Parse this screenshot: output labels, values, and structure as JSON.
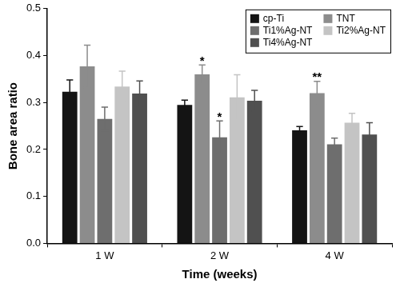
{
  "chart_data": {
    "type": "bar",
    "x_label": "Time (weeks)",
    "y_label": "Bone area ratio",
    "categories": [
      "1 W",
      "2 W",
      "4 W"
    ],
    "series": [
      {
        "name": "cp-Ti",
        "color": "#141414",
        "values": [
          0.323,
          0.295,
          0.241
        ],
        "errors": [
          0.025,
          0.01,
          0.008
        ]
      },
      {
        "name": "TNT",
        "color": "#8c8c8c",
        "values": [
          0.377,
          0.36,
          0.32
        ],
        "errors": [
          0.045,
          0.02,
          0.025
        ]
      },
      {
        "name": "Ti1%Ag-NT",
        "color": "#6e6e6e",
        "values": [
          0.265,
          0.226,
          0.211
        ],
        "errors": [
          0.025,
          0.035,
          0.013
        ]
      },
      {
        "name": "Ti2%Ag-NT",
        "color": "#c4c4c4",
        "values": [
          0.334,
          0.311,
          0.257
        ],
        "errors": [
          0.033,
          0.048,
          0.02
        ]
      },
      {
        "name": "Ti4%Ag-NT",
        "color": "#505050",
        "values": [
          0.319,
          0.304,
          0.232
        ],
        "errors": [
          0.027,
          0.022,
          0.025
        ]
      }
    ],
    "annotations": [
      {
        "series": "TNT",
        "category": "2 W",
        "text": "*"
      },
      {
        "series": "Ti1%Ag-NT",
        "category": "2 W",
        "text": "*"
      },
      {
        "series": "TNT",
        "category": "4 W",
        "text": "**"
      }
    ],
    "ylim": [
      0,
      0.5
    ],
    "yticks": [
      {
        "value": 0,
        "label": "0.0"
      },
      0.1,
      0.2,
      0.3,
      0.4,
      0.5
    ],
    "grid": false,
    "legend": "upper right"
  }
}
